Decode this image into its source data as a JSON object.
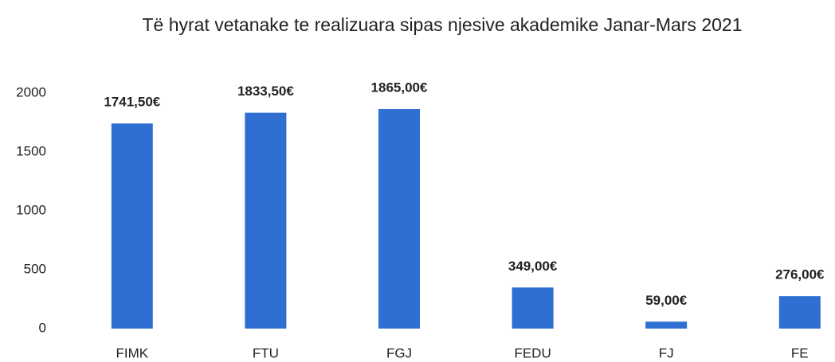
{
  "chart_data": {
    "type": "bar",
    "title": "Të hyrat vetanake te realizuara sipas njesive akademike Janar-Mars 2021",
    "categories": [
      "FIMK",
      "FTU",
      "FGJ",
      "FEDU",
      "FJ",
      "FE"
    ],
    "values": [
      1741.5,
      1833.5,
      1865,
      349,
      59,
      276
    ],
    "value_labels": [
      "1741,50€",
      "1833,50€",
      "1865,00€",
      "349,00€",
      "59,00€",
      "276,00€"
    ],
    "color": "#2e6fd1",
    "ylim": [
      0,
      2000
    ],
    "yticks": [
      0,
      500,
      1000,
      1500,
      2000
    ],
    "grid": false
  }
}
